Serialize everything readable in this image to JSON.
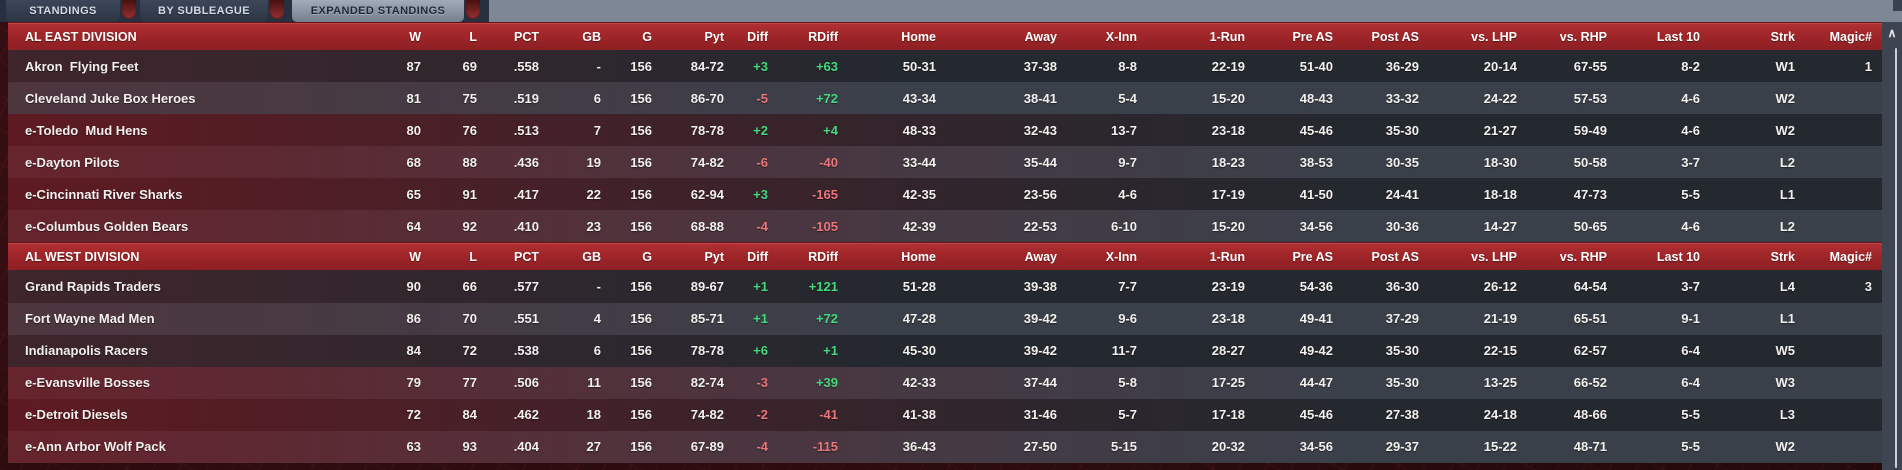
{
  "tabs": [
    {
      "label": "STANDINGS",
      "active": false
    },
    {
      "label": "BY SUBLEAGUE",
      "active": false
    },
    {
      "label": "EXPANDED STANDINGS",
      "active": true
    }
  ],
  "columns": [
    "W",
    "L",
    "PCT",
    "GB",
    "G",
    "Pyt",
    "Diff",
    "RDiff",
    "Home",
    "Away",
    "X-Inn",
    "1-Run",
    "Pre AS",
    "Post AS",
    "vs. LHP",
    "vs. RHP",
    "Last 10",
    "Strk",
    "Magic#"
  ],
  "scrollbar_up_icon": "∧",
  "colors": {
    "header_red": "#a02629",
    "positive_green": "#44d97e",
    "negative_red": "#e8767a",
    "row_dark": "#24282f",
    "row_light": "#3a404a"
  },
  "divisions": [
    {
      "name": "AL EAST DIVISION",
      "teams": [
        {
          "name": "Akron  Flying Feet",
          "eliminated": false,
          "w": "87",
          "l": "69",
          "pct": ".558",
          "gb": "-",
          "g": "156",
          "pyt": "84-72",
          "diff": "+3",
          "rdiff": "+63",
          "home": "50-31",
          "away": "37-38",
          "xinn": "8-8",
          "run1": "22-19",
          "preas": "51-40",
          "postas": "36-29",
          "lhp": "20-14",
          "rhp": "67-55",
          "last10": "8-2",
          "strk": "W1",
          "magic": "1"
        },
        {
          "name": "Cleveland Juke Box Heroes",
          "eliminated": false,
          "w": "81",
          "l": "75",
          "pct": ".519",
          "gb": "6",
          "g": "156",
          "pyt": "86-70",
          "diff": "-5",
          "rdiff": "+72",
          "home": "43-34",
          "away": "38-41",
          "xinn": "5-4",
          "run1": "15-20",
          "preas": "48-43",
          "postas": "33-32",
          "lhp": "24-22",
          "rhp": "57-53",
          "last10": "4-6",
          "strk": "W2",
          "magic": ""
        },
        {
          "name": "e-Toledo  Mud Hens",
          "eliminated": true,
          "w": "80",
          "l": "76",
          "pct": ".513",
          "gb": "7",
          "g": "156",
          "pyt": "78-78",
          "diff": "+2",
          "rdiff": "+4",
          "home": "48-33",
          "away": "32-43",
          "xinn": "13-7",
          "run1": "23-18",
          "preas": "45-46",
          "postas": "35-30",
          "lhp": "21-27",
          "rhp": "59-49",
          "last10": "4-6",
          "strk": "W2",
          "magic": ""
        },
        {
          "name": "e-Dayton Pilots",
          "eliminated": true,
          "w": "68",
          "l": "88",
          "pct": ".436",
          "gb": "19",
          "g": "156",
          "pyt": "74-82",
          "diff": "-6",
          "rdiff": "-40",
          "home": "33-44",
          "away": "35-44",
          "xinn": "9-7",
          "run1": "18-23",
          "preas": "38-53",
          "postas": "30-35",
          "lhp": "18-30",
          "rhp": "50-58",
          "last10": "3-7",
          "strk": "L2",
          "magic": ""
        },
        {
          "name": "e-Cincinnati River Sharks",
          "eliminated": true,
          "w": "65",
          "l": "91",
          "pct": ".417",
          "gb": "22",
          "g": "156",
          "pyt": "62-94",
          "diff": "+3",
          "rdiff": "-165",
          "home": "42-35",
          "away": "23-56",
          "xinn": "4-6",
          "run1": "17-19",
          "preas": "41-50",
          "postas": "24-41",
          "lhp": "18-18",
          "rhp": "47-73",
          "last10": "5-5",
          "strk": "L1",
          "magic": ""
        },
        {
          "name": "e-Columbus Golden Bears",
          "eliminated": true,
          "w": "64",
          "l": "92",
          "pct": ".410",
          "gb": "23",
          "g": "156",
          "pyt": "68-88",
          "diff": "-4",
          "rdiff": "-105",
          "home": "42-39",
          "away": "22-53",
          "xinn": "6-10",
          "run1": "15-20",
          "preas": "34-56",
          "postas": "30-36",
          "lhp": "14-27",
          "rhp": "50-65",
          "last10": "4-6",
          "strk": "L2",
          "magic": ""
        }
      ]
    },
    {
      "name": "AL WEST DIVISION",
      "teams": [
        {
          "name": "Grand Rapids Traders",
          "eliminated": false,
          "w": "90",
          "l": "66",
          "pct": ".577",
          "gb": "-",
          "g": "156",
          "pyt": "89-67",
          "diff": "+1",
          "rdiff": "+121",
          "home": "51-28",
          "away": "39-38",
          "xinn": "7-7",
          "run1": "23-19",
          "preas": "54-36",
          "postas": "36-30",
          "lhp": "26-12",
          "rhp": "64-54",
          "last10": "3-7",
          "strk": "L4",
          "magic": "3"
        },
        {
          "name": "Fort Wayne Mad Men",
          "eliminated": false,
          "w": "86",
          "l": "70",
          "pct": ".551",
          "gb": "4",
          "g": "156",
          "pyt": "85-71",
          "diff": "+1",
          "rdiff": "+72",
          "home": "47-28",
          "away": "39-42",
          "xinn": "9-6",
          "run1": "23-18",
          "preas": "49-41",
          "postas": "37-29",
          "lhp": "21-19",
          "rhp": "65-51",
          "last10": "9-1",
          "strk": "L1",
          "magic": ""
        },
        {
          "name": "Indianapolis Racers",
          "eliminated": false,
          "w": "84",
          "l": "72",
          "pct": ".538",
          "gb": "6",
          "g": "156",
          "pyt": "78-78",
          "diff": "+6",
          "rdiff": "+1",
          "home": "45-30",
          "away": "39-42",
          "xinn": "11-7",
          "run1": "28-27",
          "preas": "49-42",
          "postas": "35-30",
          "lhp": "22-15",
          "rhp": "62-57",
          "last10": "6-4",
          "strk": "W5",
          "magic": ""
        },
        {
          "name": "e-Evansville Bosses",
          "eliminated": true,
          "w": "79",
          "l": "77",
          "pct": ".506",
          "gb": "11",
          "g": "156",
          "pyt": "82-74",
          "diff": "-3",
          "rdiff": "+39",
          "home": "42-33",
          "away": "37-44",
          "xinn": "5-8",
          "run1": "17-25",
          "preas": "44-47",
          "postas": "35-30",
          "lhp": "13-25",
          "rhp": "66-52",
          "last10": "6-4",
          "strk": "W3",
          "magic": ""
        },
        {
          "name": "e-Detroit Diesels",
          "eliminated": true,
          "w": "72",
          "l": "84",
          "pct": ".462",
          "gb": "18",
          "g": "156",
          "pyt": "74-82",
          "diff": "-2",
          "rdiff": "-41",
          "home": "41-38",
          "away": "31-46",
          "xinn": "5-7",
          "run1": "17-18",
          "preas": "45-46",
          "postas": "27-38",
          "lhp": "24-18",
          "rhp": "48-66",
          "last10": "5-5",
          "strk": "L3",
          "magic": ""
        },
        {
          "name": "e-Ann Arbor Wolf Pack",
          "eliminated": true,
          "w": "63",
          "l": "93",
          "pct": ".404",
          "gb": "27",
          "g": "156",
          "pyt": "67-89",
          "diff": "-4",
          "rdiff": "-115",
          "home": "36-43",
          "away": "27-50",
          "xinn": "5-15",
          "run1": "20-32",
          "preas": "34-56",
          "postas": "29-37",
          "lhp": "15-22",
          "rhp": "48-71",
          "last10": "5-5",
          "strk": "W2",
          "magic": ""
        }
      ]
    }
  ]
}
